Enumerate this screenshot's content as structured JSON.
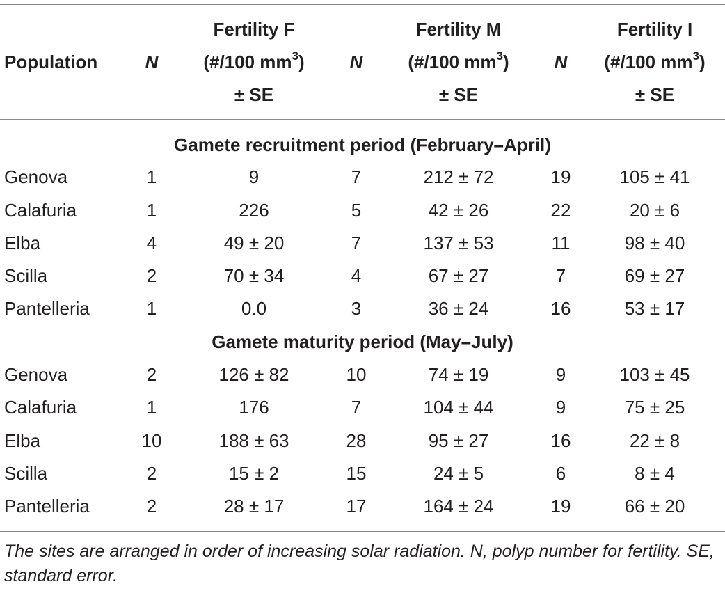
{
  "header": {
    "population": "Population",
    "n1": "N",
    "fert_f": {
      "line1": "Fertility F",
      "line2a": "(#/100 mm",
      "sup": "3",
      "line2b": ")",
      "line3": "± SE"
    },
    "n2": "N",
    "fert_m": {
      "line1": "Fertility M",
      "line2a": "(#/100 mm",
      "sup": "3",
      "line2b": ")",
      "line3": "± SE"
    },
    "n3": "N",
    "fert_i": {
      "line1": "Fertility I",
      "line2a": "(#/100 mm",
      "sup": "3",
      "line2b": ")",
      "line3": "± SE"
    }
  },
  "sections": [
    {
      "title": "Gamete recruitment period (February–April)",
      "rows": [
        [
          "Genova",
          "1",
          "9",
          "7",
          "212 ± 72",
          "19",
          "105 ± 41"
        ],
        [
          "Calafuria",
          "1",
          "226",
          "5",
          "42 ± 26",
          "22",
          "20 ± 6"
        ],
        [
          "Elba",
          "4",
          "49 ± 20",
          "7",
          "137 ± 53",
          "11",
          "98 ± 40"
        ],
        [
          "Scilla",
          "2",
          "70 ± 34",
          "4",
          "67 ± 27",
          "7",
          "69 ± 27"
        ],
        [
          "Pantelleria",
          "1",
          "0.0",
          "3",
          "36 ± 24",
          "16",
          "53 ± 17"
        ]
      ]
    },
    {
      "title": "Gamete maturity period (May–July)",
      "rows": [
        [
          "Genova",
          "2",
          "126 ± 82",
          "10",
          "74 ± 19",
          "9",
          "103 ± 45"
        ],
        [
          "Calafuria",
          "1",
          "176",
          "7",
          "104 ± 44",
          "9",
          "75 ± 25"
        ],
        [
          "Elba",
          "10",
          "188 ± 63",
          "28",
          "95 ± 27",
          "16",
          "22 ± 8"
        ],
        [
          "Scilla",
          "2",
          "15 ± 2",
          "15",
          "24 ± 5",
          "6",
          "8 ± 4"
        ],
        [
          "Pantelleria",
          "2",
          "28 ± 17",
          "17",
          "164 ± 24",
          "19",
          "66 ± 20"
        ]
      ]
    }
  ],
  "footnote": "The sites are arranged in order of increasing solar radiation. N, polyp number for fertility. SE, standard error."
}
